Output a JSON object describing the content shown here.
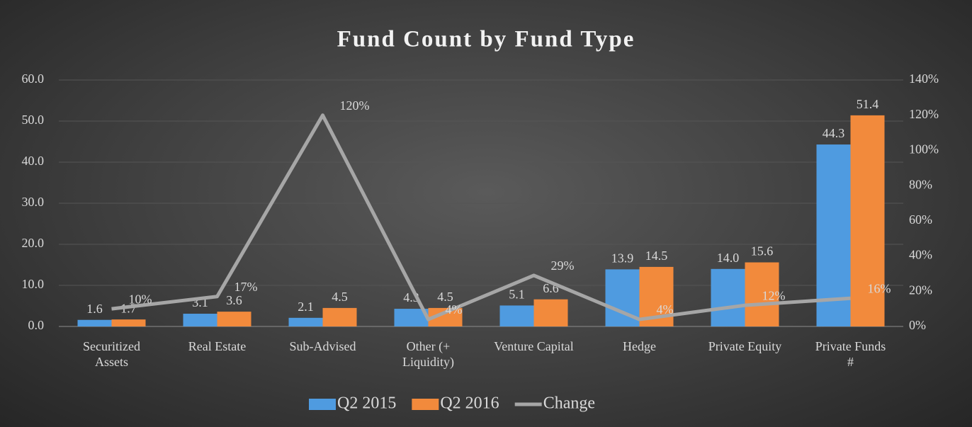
{
  "chart_data": {
    "type": "bar-line",
    "title": "Fund Count by Fund Type",
    "categories": [
      "Securitized\nAssets",
      "Real Estate",
      "Sub-Advised",
      "Other (+\nLiquidity)",
      "Venture Capital",
      "Hedge",
      "Private Equity",
      "Private Funds\n#"
    ],
    "series": [
      {
        "name": "Q2 2015",
        "type": "bar",
        "color": "#4f9be0",
        "values": [
          1.6,
          3.1,
          2.1,
          4.3,
          5.1,
          13.9,
          14.0,
          44.3
        ],
        "value_labels": [
          "1.6",
          "3.1",
          "2.1",
          "4.3",
          "5.1",
          "13.9",
          "14.0",
          "44.3"
        ]
      },
      {
        "name": "Q2 2016",
        "type": "bar",
        "color": "#f28a3c",
        "values": [
          1.7,
          3.6,
          4.5,
          4.5,
          6.6,
          14.5,
          15.6,
          51.4
        ],
        "value_labels": [
          "1.7",
          "3.6",
          "4.5",
          "4.5",
          "6.6",
          "14.5",
          "15.6",
          "51.4"
        ]
      },
      {
        "name": "Change",
        "type": "line",
        "axis": "y2",
        "color": "#a6a6a6",
        "values": [
          10,
          17,
          120,
          4,
          29,
          4,
          12,
          16
        ],
        "value_labels": [
          "10%",
          "17%",
          "120%",
          "4%",
          "29%",
          "4%",
          "12%",
          "16%"
        ]
      }
    ],
    "ylim": [
      0,
      60
    ],
    "yticks": [
      {
        "value": 0,
        "label": "0.0"
      },
      {
        "value": 10,
        "label": "10.0"
      },
      {
        "value": 20,
        "label": "20.0"
      },
      {
        "value": 30,
        "label": "30.0"
      },
      {
        "value": 40,
        "label": "40.0"
      },
      {
        "value": 50,
        "label": "50.0"
      },
      {
        "value": 60,
        "label": "60.0"
      }
    ],
    "y2lim": [
      0,
      140
    ],
    "y2ticks": [
      {
        "value": 0,
        "label": "0%"
      },
      {
        "value": 20,
        "label": "20%"
      },
      {
        "value": 40,
        "label": "40%"
      },
      {
        "value": 60,
        "label": "60%"
      },
      {
        "value": 80,
        "label": "80%"
      },
      {
        "value": 100,
        "label": "100%"
      },
      {
        "value": 120,
        "label": "120%"
      },
      {
        "value": 140,
        "label": "140%"
      }
    ],
    "grid": true,
    "legend": "bottom"
  }
}
